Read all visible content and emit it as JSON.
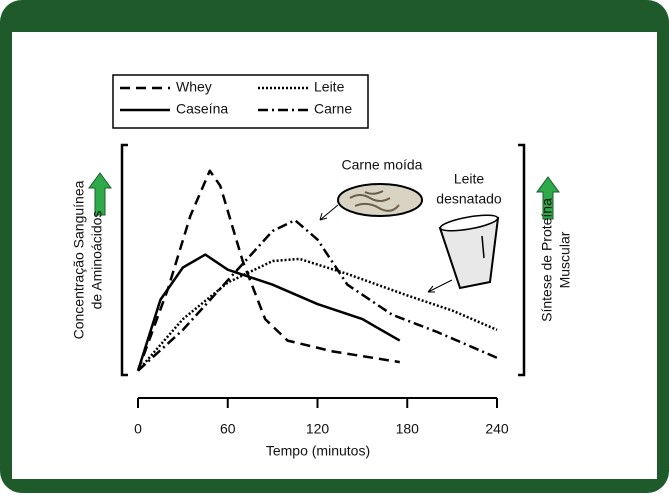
{
  "chart_data": {
    "type": "line",
    "x_label": "Tempo (minutos)",
    "y_label": [
      "Concentração Sanguínea",
      "de Aminoácidos"
    ],
    "y2_label": [
      "Síntese de Proteína",
      "Muscular"
    ],
    "annotations": {
      "meat": "Carne moída",
      "milk": [
        "Leite",
        "desnatado"
      ]
    },
    "xlim": [
      0,
      240
    ],
    "xticks": [
      0,
      60,
      120,
      180,
      240
    ],
    "ylim": [
      0,
      100
    ],
    "series": [
      {
        "name": "Whey",
        "color": "#000000",
        "style": "dashed",
        "x": [
          0,
          20,
          35,
          48,
          55,
          70,
          85,
          100,
          130,
          175
        ],
        "values": [
          2,
          40,
          74,
          95,
          88,
          53,
          26,
          16,
          11,
          6
        ]
      },
      {
        "name": "Leite",
        "color": "#000000",
        "style": "dotted",
        "x": [
          0,
          30,
          60,
          90,
          108,
          140,
          180,
          210,
          240
        ],
        "values": [
          2,
          26,
          43,
          53,
          54,
          47,
          37,
          30,
          21
        ]
      },
      {
        "name": "Caseína",
        "color": "#000000",
        "style": "solid",
        "x": [
          0,
          15,
          30,
          45,
          60,
          90,
          120,
          150,
          175
        ],
        "values": [
          2,
          35,
          50,
          56,
          49,
          42,
          33,
          26,
          16
        ]
      },
      {
        "name": "Carne",
        "color": "#000000",
        "style": "dashdot",
        "x": [
          0,
          30,
          60,
          90,
          105,
          120,
          140,
          170,
          200,
          240
        ],
        "values": [
          2,
          21,
          44,
          67,
          72,
          63,
          42,
          28,
          20,
          8
        ]
      }
    ]
  }
}
